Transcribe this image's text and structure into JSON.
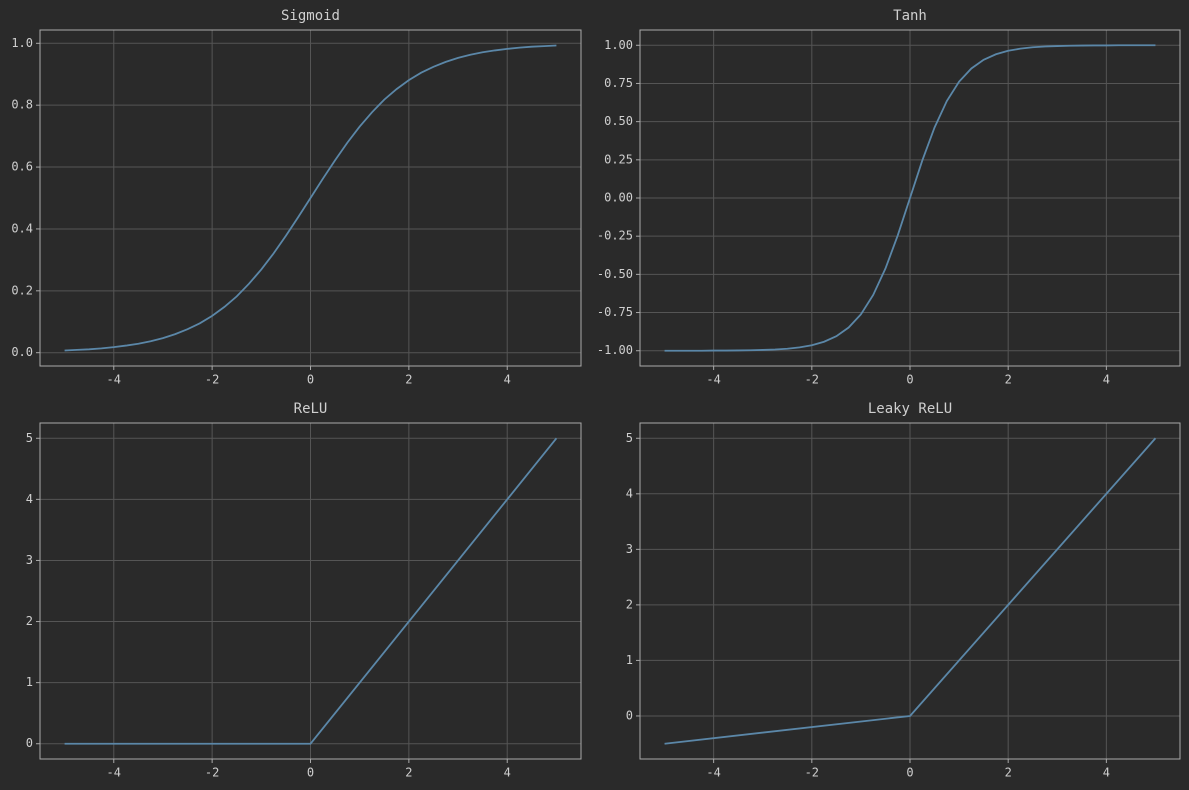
{
  "chart_data": [
    {
      "type": "line",
      "title": "Sigmoid",
      "grid": true,
      "x": [
        -5,
        -4.75,
        -4.5,
        -4.25,
        -4,
        -3.75,
        -3.5,
        -3.25,
        -3,
        -2.75,
        -2.5,
        -2.25,
        -2,
        -1.75,
        -1.5,
        -1.25,
        -1,
        -0.75,
        -0.5,
        -0.25,
        0,
        0.25,
        0.5,
        0.75,
        1,
        1.25,
        1.5,
        1.75,
        2,
        2.25,
        2.5,
        2.75,
        3,
        3.25,
        3.5,
        3.75,
        4,
        4.25,
        4.5,
        4.75,
        5
      ],
      "series": [
        {
          "color": "#5b87a8",
          "values": [
            0.007,
            0.009,
            0.011,
            0.014,
            0.018,
            0.023,
            0.029,
            0.037,
            0.047,
            0.06,
            0.076,
            0.095,
            0.119,
            0.148,
            0.182,
            0.223,
            0.269,
            0.321,
            0.378,
            0.438,
            0.5,
            0.562,
            0.622,
            0.679,
            0.731,
            0.777,
            0.818,
            0.852,
            0.881,
            0.905,
            0.924,
            0.94,
            0.953,
            0.963,
            0.971,
            0.977,
            0.982,
            0.986,
            0.989,
            0.991,
            0.993
          ]
        }
      ],
      "xlim": [
        -5.5,
        5.5
      ],
      "xticks": [
        -4,
        -2,
        0,
        2,
        4
      ],
      "ylim": [
        -0.043,
        1.043
      ],
      "yticks": [
        {
          "value": 0,
          "label": "0.0"
        },
        {
          "value": 0.2,
          "label": "0.2"
        },
        {
          "value": 0.4,
          "label": "0.4"
        },
        {
          "value": 0.6,
          "label": "0.6"
        },
        {
          "value": 0.8,
          "label": "0.8"
        },
        {
          "value": 1,
          "label": "1.0"
        }
      ]
    },
    {
      "type": "line",
      "title": "Tanh",
      "grid": true,
      "x": [
        -5,
        -4.75,
        -4.5,
        -4.25,
        -4,
        -3.75,
        -3.5,
        -3.25,
        -3,
        -2.75,
        -2.5,
        -2.25,
        -2,
        -1.75,
        -1.5,
        -1.25,
        -1,
        -0.75,
        -0.5,
        -0.25,
        0,
        0.25,
        0.5,
        0.75,
        1,
        1.25,
        1.5,
        1.75,
        2,
        2.25,
        2.5,
        2.75,
        3,
        3.25,
        3.5,
        3.75,
        4,
        4.25,
        4.5,
        4.75,
        5
      ],
      "series": [
        {
          "color": "#5b87a8",
          "values": [
            -1,
            -1,
            -1,
            -1,
            -0.999,
            -0.999,
            -0.998,
            -0.997,
            -0.995,
            -0.992,
            -0.987,
            -0.978,
            -0.964,
            -0.941,
            -0.905,
            -0.848,
            -0.762,
            -0.635,
            -0.462,
            -0.245,
            0,
            0.245,
            0.462,
            0.635,
            0.762,
            0.848,
            0.905,
            0.941,
            0.964,
            0.978,
            0.987,
            0.992,
            0.995,
            0.997,
            0.998,
            0.999,
            0.999,
            1,
            1,
            1,
            1
          ]
        }
      ],
      "xlim": [
        -5.5,
        5.5
      ],
      "xticks": [
        -4,
        -2,
        0,
        2,
        4
      ],
      "ylim": [
        -1.1,
        1.1
      ],
      "yticks": [
        {
          "value": -1,
          "label": "-1.00"
        },
        {
          "value": -0.75,
          "label": "-0.75"
        },
        {
          "value": -0.5,
          "label": "-0.50"
        },
        {
          "value": -0.25,
          "label": "-0.25"
        },
        {
          "value": 0,
          "label": "0.00"
        },
        {
          "value": 0.25,
          "label": "0.25"
        },
        {
          "value": 0.5,
          "label": "0.50"
        },
        {
          "value": 0.75,
          "label": "0.75"
        },
        {
          "value": 1,
          "label": "1.00"
        }
      ]
    },
    {
      "type": "line",
      "title": "ReLU",
      "grid": true,
      "x": [
        -5,
        0,
        5
      ],
      "series": [
        {
          "color": "#5b87a8",
          "values": [
            0,
            0,
            5
          ]
        }
      ],
      "xlim": [
        -5.5,
        5.5
      ],
      "xticks": [
        -4,
        -2,
        0,
        2,
        4
      ],
      "ylim": [
        -0.25,
        5.25
      ],
      "yticks": [
        0,
        1,
        2,
        3,
        4,
        5
      ]
    },
    {
      "type": "line",
      "title": "Leaky ReLU",
      "grid": true,
      "x": [
        -5,
        0,
        5
      ],
      "series": [
        {
          "color": "#5b87a8",
          "values": [
            -0.5,
            0,
            5
          ]
        }
      ],
      "xlim": [
        -5.5,
        5.5
      ],
      "xticks": [
        -4,
        -2,
        0,
        2,
        4
      ],
      "ylim": [
        -0.775,
        5.275
      ],
      "yticks": [
        0,
        1,
        2,
        3,
        4,
        5
      ]
    }
  ]
}
